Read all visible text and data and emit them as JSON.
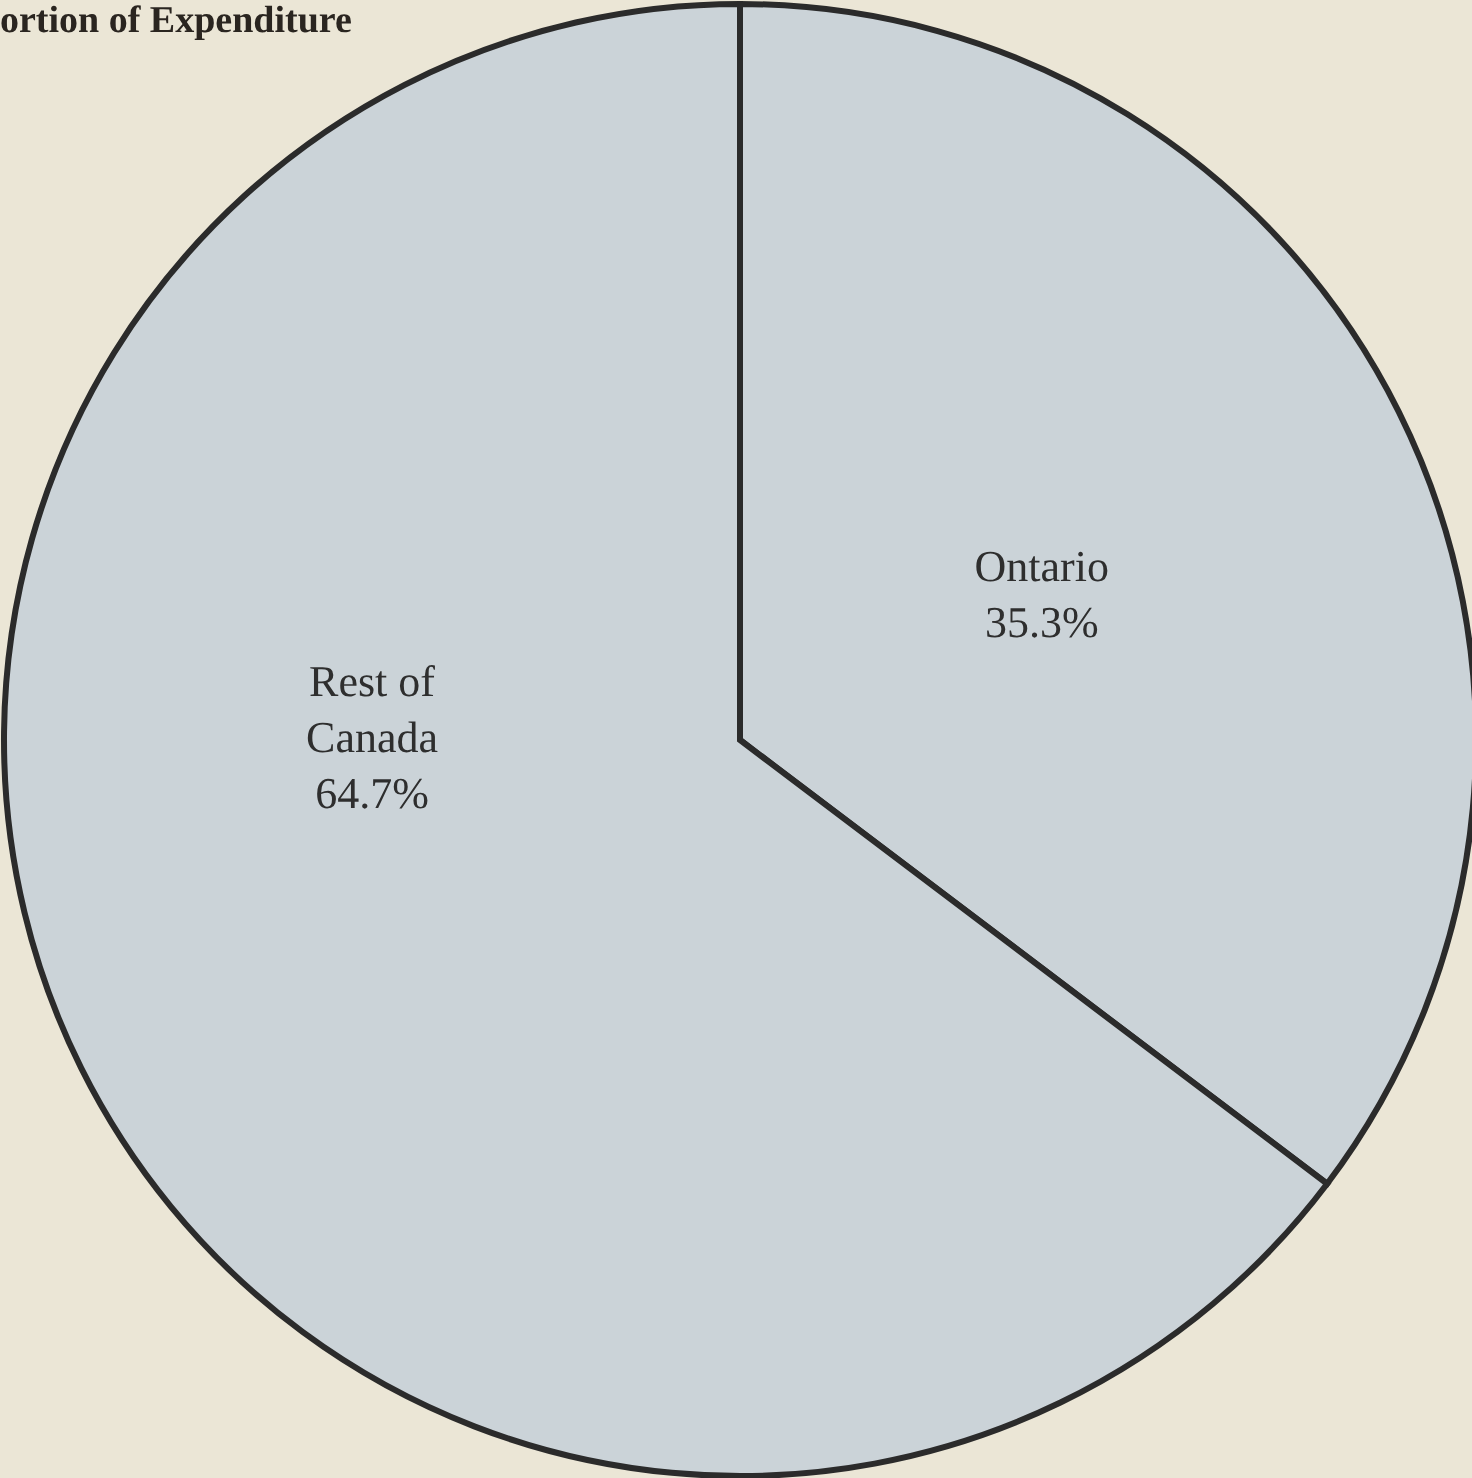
{
  "chart_data": {
    "type": "pie",
    "title": "ortion of Expenditure",
    "categories": [
      "Ontario",
      "Rest of Canada"
    ],
    "values": [
      35.3,
      64.7
    ],
    "value_labels": [
      "35.3%",
      "64.7%"
    ],
    "colors": [
      "#cbd3d8",
      "#cbd3d8"
    ]
  }
}
